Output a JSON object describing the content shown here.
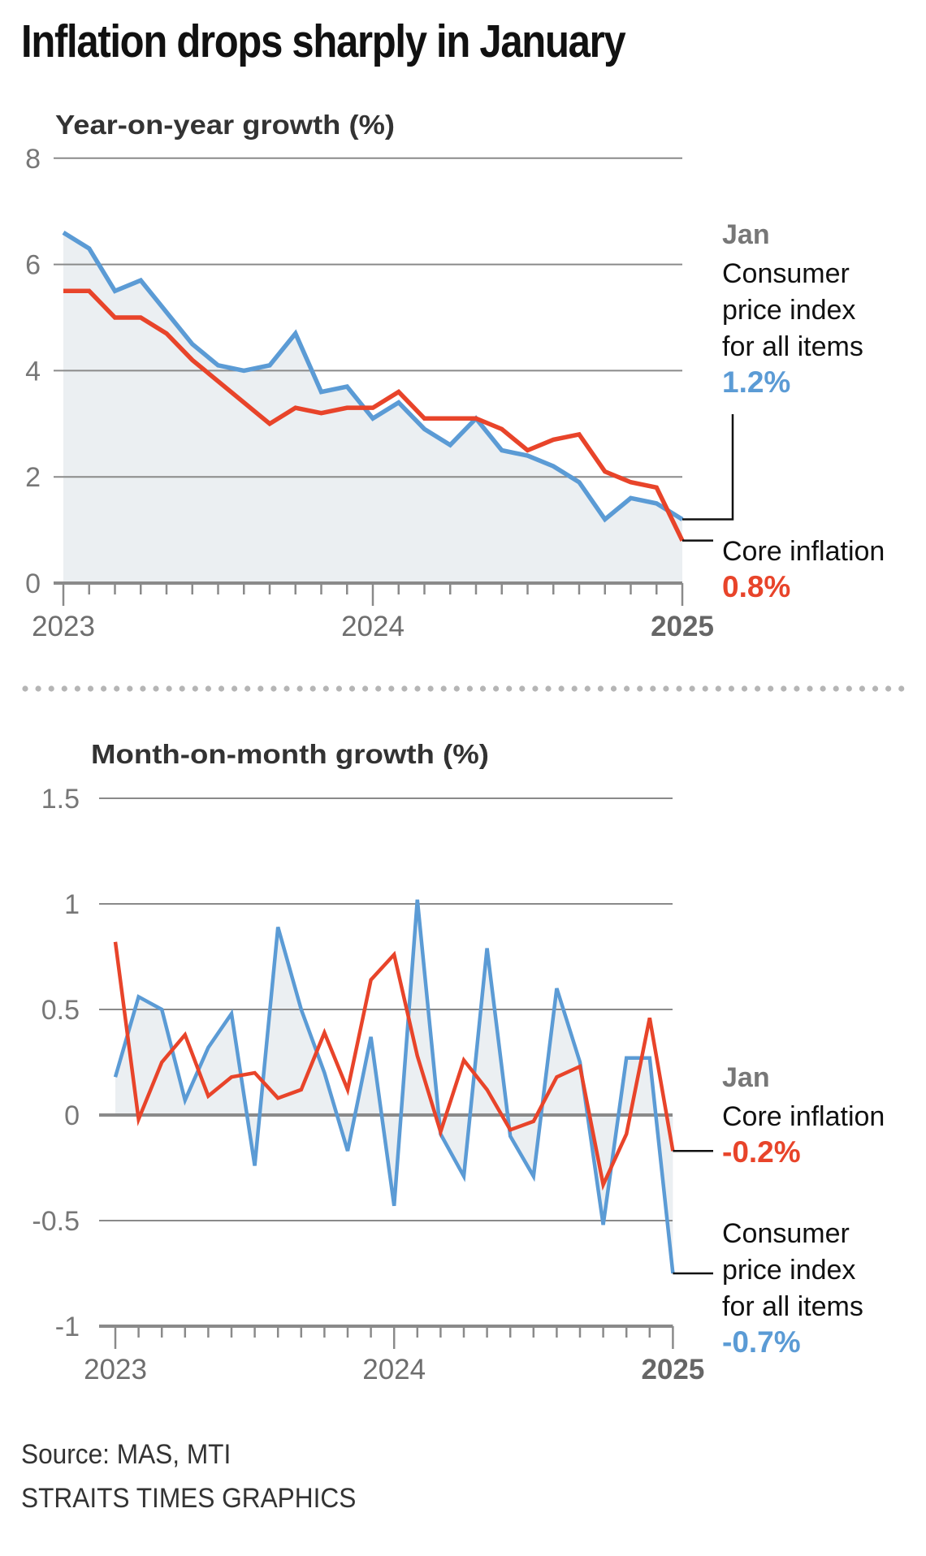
{
  "title": "Inflation drops sharply in January",
  "footer": {
    "source": "Source: MAS, MTI",
    "credit": "STRAITS TIMES GRAPHICS"
  },
  "colors": {
    "cpi": "#5b9bd5",
    "core": "#e8442a",
    "area": "#ebeff2",
    "grid": "#8a8a8a",
    "axis_text": "#777777",
    "year_text": "#6e6e6e"
  },
  "chart_data": [
    {
      "type": "line",
      "title": "Year-on-year growth (%)",
      "xlabel": "",
      "ylabel": "Year-on-year growth (%)",
      "ylim": [
        0,
        8
      ],
      "yticks": [
        "0",
        "2",
        "4",
        "6",
        "8"
      ],
      "ytick_values": [
        0,
        2,
        4,
        6,
        8
      ],
      "x": [
        "Jan 2023",
        "Feb 2023",
        "Mar 2023",
        "Apr 2023",
        "May 2023",
        "Jun 2023",
        "Jul 2023",
        "Aug 2023",
        "Sep 2023",
        "Oct 2023",
        "Nov 2023",
        "Dec 2023",
        "Jan 2024",
        "Feb 2024",
        "Mar 2024",
        "Apr 2024",
        "May 2024",
        "Jun 2024",
        "Jul 2024",
        "Aug 2024",
        "Sep 2024",
        "Oct 2024",
        "Nov 2024",
        "Dec 2024",
        "Jan 2025"
      ],
      "xtick_labels": [
        {
          "label": "2023",
          "index": 0,
          "bold": false
        },
        {
          "label": "2024",
          "index": 12,
          "bold": false
        },
        {
          "label": "2025",
          "index": 24,
          "bold": true
        }
      ],
      "grid": true,
      "series": [
        {
          "name": "Consumer price index for all items",
          "color": "#5b9bd5",
          "fill_area": true,
          "values": [
            6.6,
            6.3,
            5.5,
            5.7,
            5.1,
            4.5,
            4.1,
            4.0,
            4.1,
            4.7,
            3.6,
            3.7,
            3.1,
            3.4,
            2.9,
            2.6,
            3.1,
            2.5,
            2.4,
            2.2,
            1.9,
            1.2,
            1.6,
            1.5,
            1.2
          ]
        },
        {
          "name": "Core inflation",
          "color": "#e8442a",
          "fill_area": false,
          "values": [
            5.5,
            5.5,
            5.0,
            5.0,
            4.7,
            4.2,
            3.8,
            3.4,
            3.0,
            3.3,
            3.2,
            3.3,
            3.3,
            3.6,
            3.1,
            3.1,
            3.1,
            2.9,
            2.5,
            2.7,
            2.8,
            2.1,
            1.9,
            1.8,
            0.8
          ]
        }
      ],
      "annotations": {
        "period": "Jan",
        "cpi_label": [
          "Consumer",
          "price index",
          "for all items"
        ],
        "cpi_value": "1.2%",
        "core_label": [
          "Core inflation"
        ],
        "core_value": "0.8%"
      }
    },
    {
      "type": "line",
      "title": "Month-on-month growth (%)",
      "xlabel": "",
      "ylabel": "Month-on-month growth (%)",
      "ylim": [
        -1,
        1.5
      ],
      "yticks": [
        "-1",
        "-0.5",
        "0",
        "0.5",
        "1",
        "1.5"
      ],
      "ytick_values": [
        -1,
        -0.5,
        0,
        0.5,
        1,
        1.5
      ],
      "x": [
        "Jan 2023",
        "Feb 2023",
        "Mar 2023",
        "Apr 2023",
        "May 2023",
        "Jun 2023",
        "Jul 2023",
        "Aug 2023",
        "Sep 2023",
        "Oct 2023",
        "Nov 2023",
        "Dec 2023",
        "Jan 2024",
        "Feb 2024",
        "Mar 2024",
        "Apr 2024",
        "May 2024",
        "Jun 2024",
        "Jul 2024",
        "Aug 2024",
        "Sep 2024",
        "Oct 2024",
        "Nov 2024",
        "Dec 2024",
        "Jan 2025"
      ],
      "xtick_labels": [
        {
          "label": "2023",
          "index": 0,
          "bold": false
        },
        {
          "label": "2024",
          "index": 12,
          "bold": false
        },
        {
          "label": "2025",
          "index": 24,
          "bold": true
        }
      ],
      "grid": true,
      "series": [
        {
          "name": "Consumer price index for all items",
          "color": "#5b9bd5",
          "fill_area": true,
          "values": [
            0.18,
            0.56,
            0.5,
            0.07,
            0.32,
            0.48,
            -0.24,
            0.89,
            0.5,
            0.2,
            -0.17,
            0.37,
            -0.43,
            1.02,
            -0.09,
            -0.29,
            0.79,
            -0.1,
            -0.29,
            0.6,
            0.25,
            -0.52,
            0.27,
            0.27,
            -0.75
          ]
        },
        {
          "name": "Core inflation",
          "color": "#e8442a",
          "fill_area": false,
          "values": [
            0.82,
            -0.02,
            0.25,
            0.38,
            0.09,
            0.18,
            0.2,
            0.08,
            0.12,
            0.39,
            0.12,
            0.64,
            0.76,
            0.28,
            -0.08,
            0.26,
            0.12,
            -0.07,
            -0.03,
            0.18,
            0.23,
            -0.33,
            -0.09,
            0.46,
            -0.17
          ]
        }
      ],
      "annotations": {
        "period": "Jan",
        "core_label": [
          "Core inflation"
        ],
        "core_value": "-0.2%",
        "cpi_label": [
          "Consumer",
          "price index",
          "for all items"
        ],
        "cpi_value": "-0.7%"
      }
    }
  ]
}
